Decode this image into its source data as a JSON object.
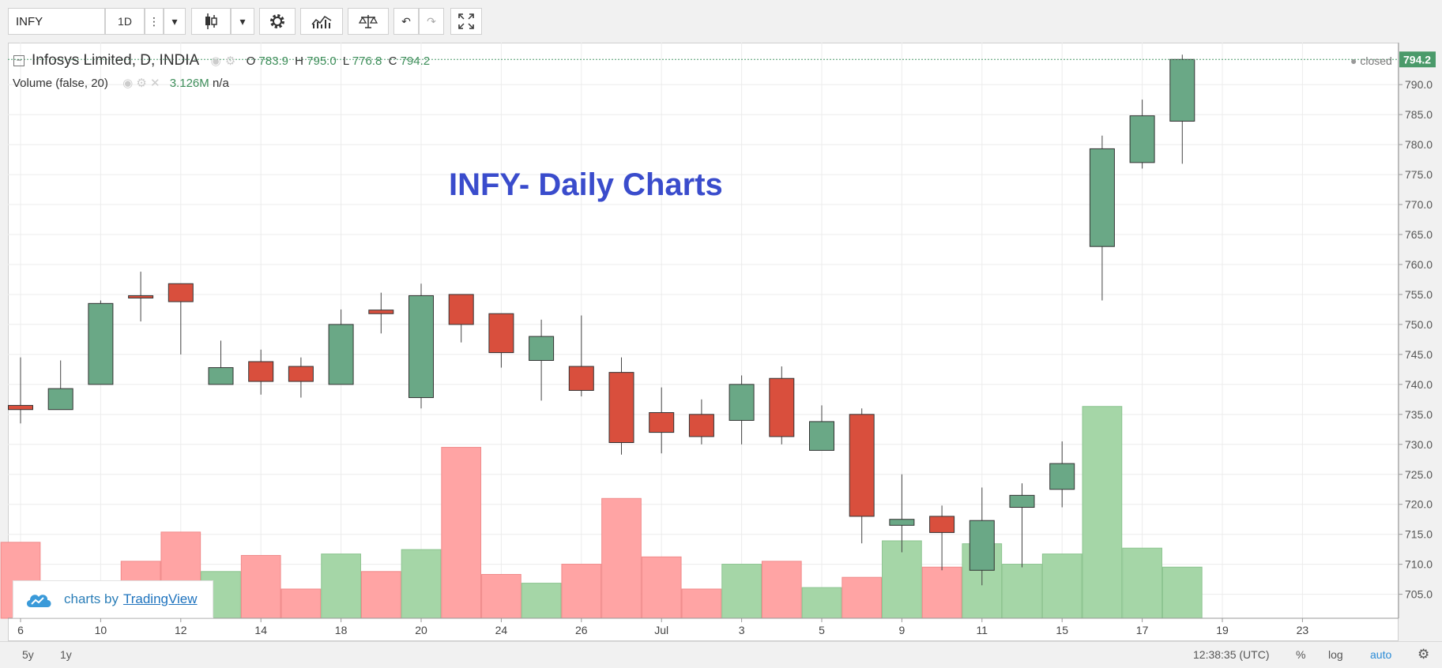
{
  "toolbar": {
    "symbol": "INFY",
    "interval": "1D"
  },
  "legend": {
    "title": "Infosys Limited, D, INDIA",
    "o_label": "O",
    "o_value": "783.9",
    "h_label": "H",
    "h_value": "795.0",
    "l_label": "L",
    "l_value": "776.8",
    "c_label": "C",
    "c_value": "794.2",
    "volume_label": "Volume (false, 20)",
    "volume_value": "3.126M",
    "volume_extra": "n/a",
    "status": "closed"
  },
  "watermark": {
    "prefix": "charts by",
    "brand": "TradingView"
  },
  "bottom": {
    "range_5y": "5y",
    "range_1y": "1y",
    "time": "12:38:35 (UTC)",
    "percent": "%",
    "log": "log",
    "auto": "auto"
  },
  "colors": {
    "up": "#6aa886",
    "down": "#d94f3d",
    "vol_up": "#a5d6a7",
    "vol_down": "#ffa4a4",
    "title": "#3a4ccc",
    "last_price": "#4a9a6a"
  },
  "chart_data": {
    "type": "candlestick",
    "title": "INFY- Daily Charts",
    "ylim": [
      701,
      797
    ],
    "y_ticks": [
      "705.0",
      "710.0",
      "715.0",
      "720.0",
      "725.0",
      "730.0",
      "735.0",
      "740.0",
      "745.0",
      "750.0",
      "755.0",
      "760.0",
      "765.0",
      "770.0",
      "775.0",
      "780.0",
      "785.0",
      "790.0"
    ],
    "last_price": "794.2",
    "x_tick_labels": [
      "6",
      "10",
      "12",
      "14",
      "18",
      "20",
      "24",
      "26",
      "Jul",
      "3",
      "5",
      "9",
      "11",
      "15",
      "17",
      "19",
      "23"
    ],
    "candles": [
      {
        "o": 736.5,
        "h": 744.5,
        "l": 733.5,
        "c": 735.8,
        "vol": 0.52
      },
      {
        "o": 735.8,
        "h": 744.0,
        "l": 735.8,
        "c": 739.3,
        "vol": 0.02
      },
      {
        "o": 740.0,
        "h": 754.0,
        "l": 740.0,
        "c": 753.5,
        "vol": 0.25
      },
      {
        "o": 754.8,
        "h": 758.8,
        "l": 750.5,
        "c": 754.6,
        "vol": 0.39
      },
      {
        "o": 756.8,
        "h": 756.8,
        "l": 745.0,
        "c": 753.8,
        "vol": 0.59
      },
      {
        "o": 740.0,
        "h": 747.3,
        "l": 740.0,
        "c": 742.8,
        "vol": 0.32
      },
      {
        "o": 743.8,
        "h": 745.8,
        "l": 738.3,
        "c": 740.5,
        "vol": 0.43
      },
      {
        "o": 743.0,
        "h": 744.5,
        "l": 737.8,
        "c": 740.5,
        "vol": 0.2
      },
      {
        "o": 740.0,
        "h": 752.5,
        "l": 740.0,
        "c": 750.0,
        "vol": 0.44
      },
      {
        "o": 752.4,
        "h": 755.3,
        "l": 748.5,
        "c": 751.8,
        "vol": 0.32
      },
      {
        "o": 737.8,
        "h": 756.8,
        "l": 736.0,
        "c": 754.8,
        "vol": 0.47
      },
      {
        "o": 755.0,
        "h": 755.0,
        "l": 747.0,
        "c": 750.0,
        "vol": 1.17
      },
      {
        "o": 751.8,
        "h": 751.8,
        "l": 742.8,
        "c": 745.3,
        "vol": 0.3
      },
      {
        "o": 744.0,
        "h": 750.8,
        "l": 737.3,
        "c": 748.0,
        "vol": 0.24
      },
      {
        "o": 743.0,
        "h": 751.5,
        "l": 738.0,
        "c": 739.0,
        "vol": 0.37
      },
      {
        "o": 742.0,
        "h": 744.5,
        "l": 728.3,
        "c": 730.3,
        "vol": 0.82
      },
      {
        "o": 735.3,
        "h": 739.5,
        "l": 728.5,
        "c": 732.0,
        "vol": 0.42
      },
      {
        "o": 735.0,
        "h": 737.5,
        "l": 730.0,
        "c": 731.3,
        "vol": 0.2
      },
      {
        "o": 734.0,
        "h": 741.5,
        "l": 730.0,
        "c": 740.0,
        "vol": 0.37
      },
      {
        "o": 741.0,
        "h": 743.0,
        "l": 730.0,
        "c": 731.3,
        "vol": 0.39
      },
      {
        "o": 729.0,
        "h": 736.5,
        "l": 729.0,
        "c": 733.8,
        "vol": 0.21
      },
      {
        "o": 735.0,
        "h": 736.0,
        "l": 713.5,
        "c": 718.0,
        "vol": 0.28
      },
      {
        "o": 716.5,
        "h": 725.0,
        "l": 712.0,
        "c": 717.5,
        "vol": 0.53
      },
      {
        "o": 718.0,
        "h": 719.8,
        "l": 709.0,
        "c": 715.3,
        "vol": 0.35
      },
      {
        "o": 709.0,
        "h": 722.8,
        "l": 706.5,
        "c": 717.3,
        "vol": 0.51
      },
      {
        "o": 719.5,
        "h": 723.5,
        "l": 709.5,
        "c": 721.5,
        "vol": 0.37
      },
      {
        "o": 722.5,
        "h": 730.5,
        "l": 719.5,
        "c": 726.8,
        "vol": 0.44
      },
      {
        "o": 763.0,
        "h": 781.5,
        "l": 754.0,
        "c": 779.3,
        "vol": 1.45
      },
      {
        "o": 777.0,
        "h": 787.5,
        "l": 776.0,
        "c": 784.8,
        "vol": 0.48
      },
      {
        "o": 783.9,
        "h": 795.0,
        "l": 776.8,
        "c": 794.2,
        "vol": 0.35
      }
    ]
  }
}
